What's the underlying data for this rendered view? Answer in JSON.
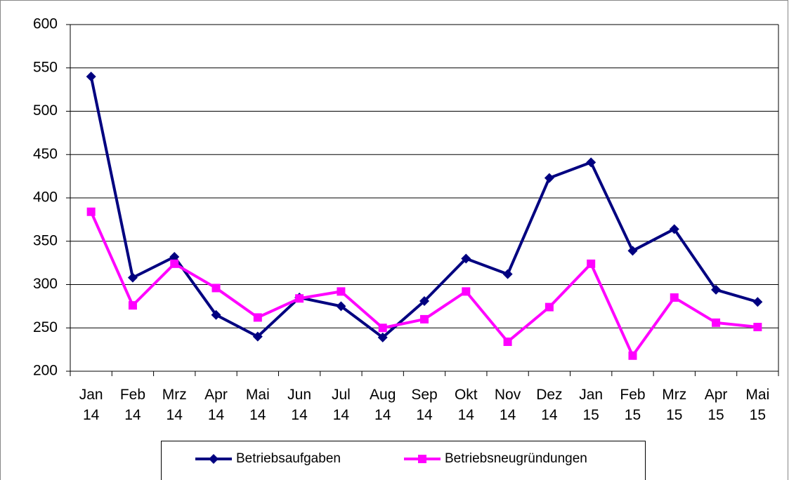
{
  "chart_data": {
    "type": "line",
    "categories": [
      "Jan 14",
      "Feb 14",
      "Mrz 14",
      "Apr 14",
      "Mai 14",
      "Jun 14",
      "Jul 14",
      "Aug 14",
      "Sep 14",
      "Okt 14",
      "Nov 14",
      "Dez 14",
      "Jan 15",
      "Feb 15",
      "Mrz 15",
      "Apr 15",
      "Mai 15"
    ],
    "series": [
      {
        "name": "Betriebsaufgaben",
        "color": "#000080",
        "marker": "diamond",
        "values": [
          540,
          308,
          332,
          265,
          240,
          285,
          275,
          239,
          281,
          330,
          312,
          423,
          441,
          339,
          364,
          294,
          280
        ]
      },
      {
        "name": "Betriebsneugründungen",
        "color": "#ff00ff",
        "marker": "square",
        "values": [
          384,
          276,
          324,
          296,
          262,
          284,
          292,
          250,
          260,
          292,
          234,
          274,
          324,
          218,
          285,
          256,
          251
        ]
      }
    ],
    "ylim": [
      200,
      600
    ],
    "yticks": [
      200,
      250,
      300,
      350,
      400,
      450,
      500,
      550,
      600
    ],
    "grid": true,
    "legend": "bottom"
  }
}
